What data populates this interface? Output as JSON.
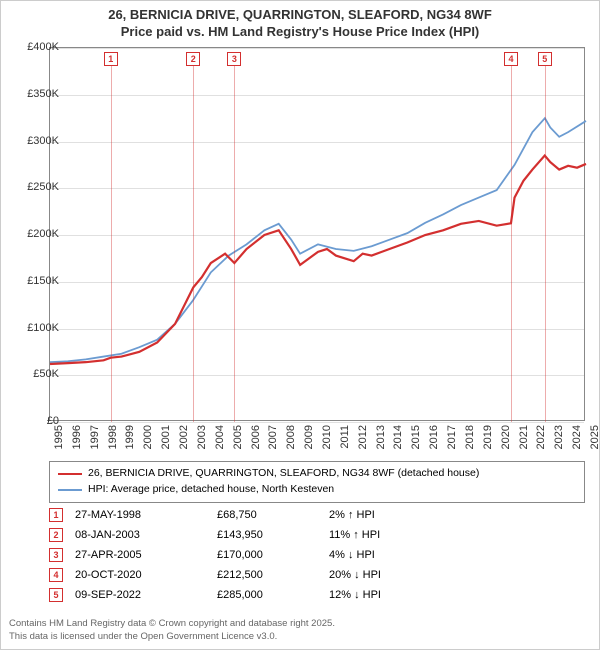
{
  "title": {
    "line1": "26, BERNICIA DRIVE, QUARRINGTON, SLEAFORD, NG34 8WF",
    "line2": "Price paid vs. HM Land Registry's House Price Index (HPI)"
  },
  "chart": {
    "type": "line",
    "background_color": "#ffffff",
    "grid_color": "#e0e0e0",
    "border_color": "#888888",
    "y_axis": {
      "min": 0,
      "max": 400000,
      "step": 50000,
      "labels": [
        "£0",
        "£50K",
        "£100K",
        "£150K",
        "£200K",
        "£250K",
        "£300K",
        "£350K",
        "£400K"
      ]
    },
    "x_axis": {
      "min": 1995,
      "max": 2025,
      "labels": [
        "1995",
        "1996",
        "1997",
        "1998",
        "1999",
        "2000",
        "2001",
        "2002",
        "2003",
        "2004",
        "2005",
        "2006",
        "2007",
        "2008",
        "2009",
        "2010",
        "2011",
        "2012",
        "2013",
        "2014",
        "2015",
        "2016",
        "2017",
        "2018",
        "2019",
        "2020",
        "2021",
        "2022",
        "2023",
        "2024",
        "2025"
      ]
    },
    "series": [
      {
        "name": "property",
        "label": "26, BERNICIA DRIVE, QUARRINGTON, SLEAFORD, NG34 8WF (detached house)",
        "color": "#d32f2f",
        "width": 2.2,
        "points": [
          [
            1995,
            62000
          ],
          [
            1996,
            63000
          ],
          [
            1997,
            64000
          ],
          [
            1998,
            66000
          ],
          [
            1998.4,
            68750
          ],
          [
            1999,
            70000
          ],
          [
            2000,
            75000
          ],
          [
            2001,
            85000
          ],
          [
            2002,
            105000
          ],
          [
            2003.02,
            143950
          ],
          [
            2003.5,
            155000
          ],
          [
            2004,
            170000
          ],
          [
            2004.8,
            180000
          ],
          [
            2005.32,
            170000
          ],
          [
            2006,
            185000
          ],
          [
            2007,
            200000
          ],
          [
            2007.8,
            205000
          ],
          [
            2008.5,
            185000
          ],
          [
            2009,
            168000
          ],
          [
            2009.5,
            175000
          ],
          [
            2010,
            182000
          ],
          [
            2010.5,
            185000
          ],
          [
            2011,
            178000
          ],
          [
            2012,
            172000
          ],
          [
            2012.5,
            180000
          ],
          [
            2013,
            178000
          ],
          [
            2014,
            185000
          ],
          [
            2015,
            192000
          ],
          [
            2016,
            200000
          ],
          [
            2017,
            205000
          ],
          [
            2018,
            212000
          ],
          [
            2019,
            215000
          ],
          [
            2020,
            210000
          ],
          [
            2020.8,
            212500
          ],
          [
            2021,
            240000
          ],
          [
            2021.5,
            258000
          ],
          [
            2022,
            270000
          ],
          [
            2022.69,
            285000
          ],
          [
            2023,
            278000
          ],
          [
            2023.5,
            270000
          ],
          [
            2024,
            274000
          ],
          [
            2024.5,
            272000
          ],
          [
            2025,
            276000
          ]
        ]
      },
      {
        "name": "hpi",
        "label": "HPI: Average price, detached house, North Kesteven",
        "color": "#6b9bd1",
        "width": 1.8,
        "points": [
          [
            1995,
            64000
          ],
          [
            1996,
            65000
          ],
          [
            1997,
            67000
          ],
          [
            1998,
            70000
          ],
          [
            1999,
            73000
          ],
          [
            2000,
            80000
          ],
          [
            2001,
            88000
          ],
          [
            2002,
            105000
          ],
          [
            2003,
            130000
          ],
          [
            2004,
            160000
          ],
          [
            2005,
            178000
          ],
          [
            2006,
            190000
          ],
          [
            2007,
            205000
          ],
          [
            2007.8,
            212000
          ],
          [
            2008.5,
            195000
          ],
          [
            2009,
            180000
          ],
          [
            2010,
            190000
          ],
          [
            2011,
            185000
          ],
          [
            2012,
            183000
          ],
          [
            2013,
            188000
          ],
          [
            2014,
            195000
          ],
          [
            2015,
            202000
          ],
          [
            2016,
            213000
          ],
          [
            2017,
            222000
          ],
          [
            2018,
            232000
          ],
          [
            2019,
            240000
          ],
          [
            2020,
            248000
          ],
          [
            2021,
            275000
          ],
          [
            2022,
            310000
          ],
          [
            2022.7,
            325000
          ],
          [
            2023,
            315000
          ],
          [
            2023.5,
            305000
          ],
          [
            2024,
            310000
          ],
          [
            2025,
            322000
          ]
        ]
      }
    ]
  },
  "markers": [
    {
      "n": "1",
      "date": "27-MAY-1998",
      "x": 1998.4,
      "price": "£68,750",
      "delta": "2% ↑ HPI"
    },
    {
      "n": "2",
      "date": "08-JAN-2003",
      "x": 2003.02,
      "price": "£143,950",
      "delta": "11% ↑ HPI"
    },
    {
      "n": "3",
      "date": "27-APR-2005",
      "x": 2005.32,
      "price": "£170,000",
      "delta": "4% ↓ HPI"
    },
    {
      "n": "4",
      "date": "20-OCT-2020",
      "x": 2020.8,
      "price": "£212,500",
      "delta": "20% ↓ HPI"
    },
    {
      "n": "5",
      "date": "09-SEP-2022",
      "x": 2022.69,
      "price": "£285,000",
      "delta": "12% ↓ HPI"
    }
  ],
  "legend": {
    "items": [
      {
        "color": "#d32f2f",
        "label": "26, BERNICIA DRIVE, QUARRINGTON, SLEAFORD, NG34 8WF (detached house)"
      },
      {
        "color": "#6b9bd1",
        "label": "HPI: Average price, detached house, North Kesteven"
      }
    ]
  },
  "footer": {
    "line1": "Contains HM Land Registry data © Crown copyright and database right 2025.",
    "line2": "This data is licensed under the Open Government Licence v3.0."
  }
}
